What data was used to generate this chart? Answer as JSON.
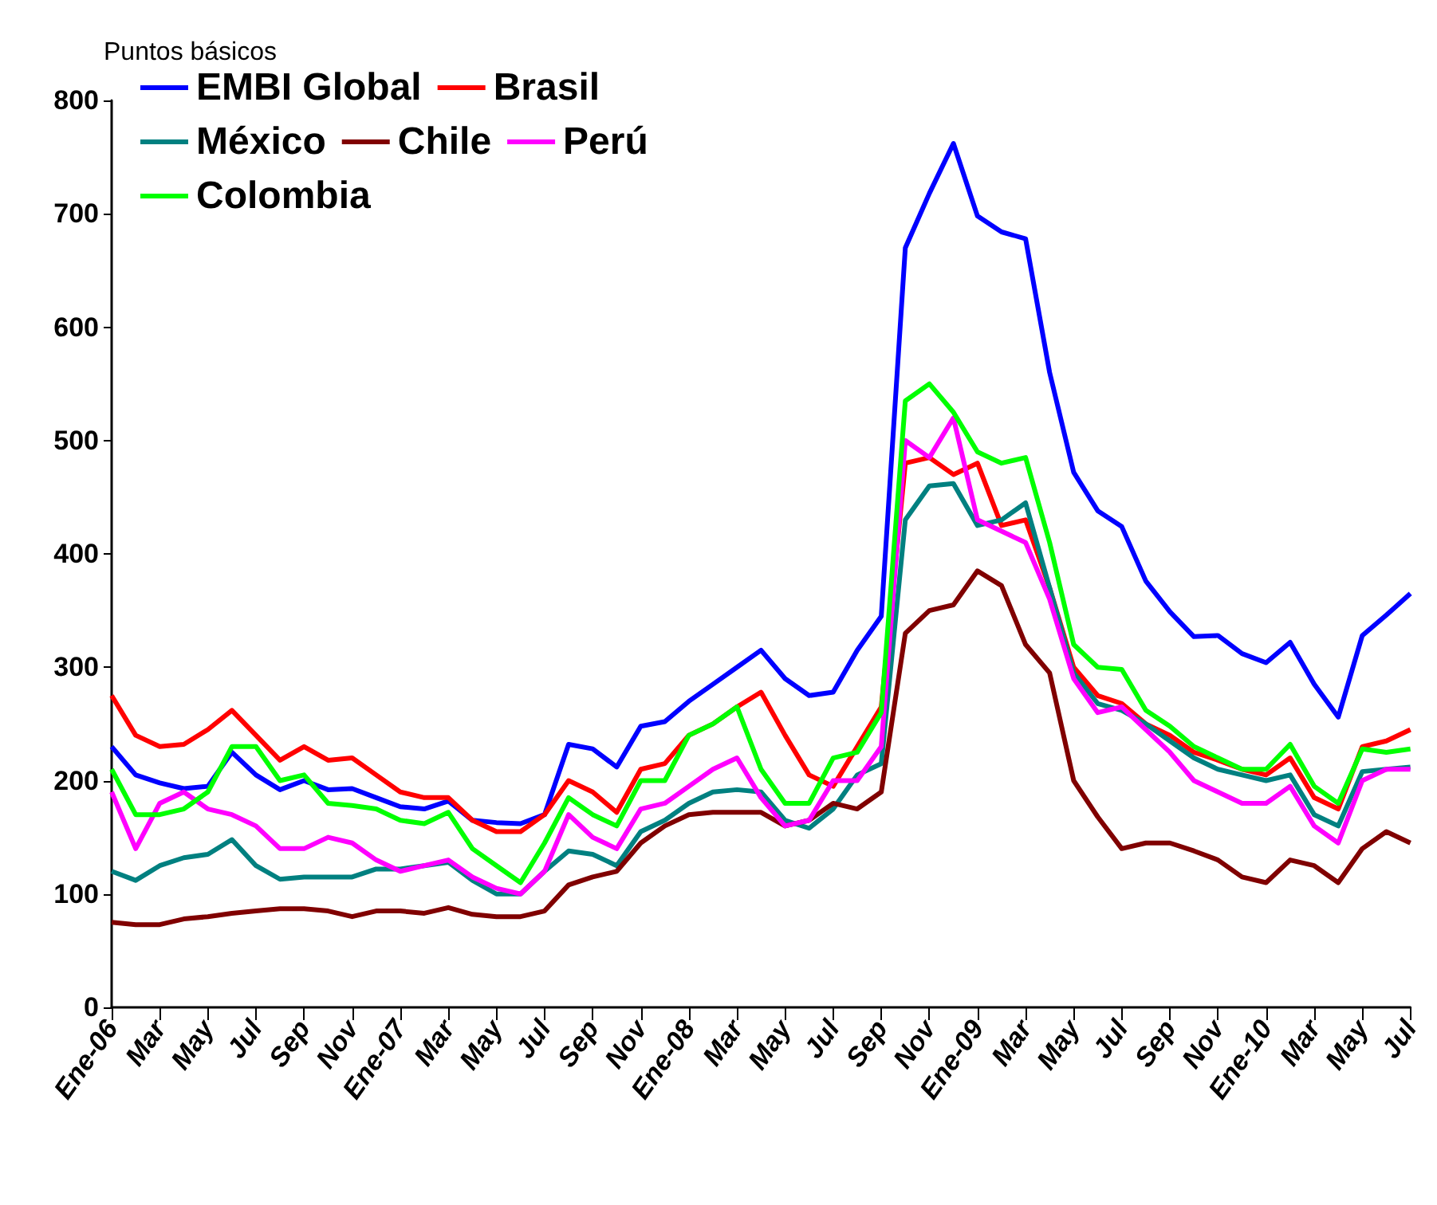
{
  "chart_data": {
    "type": "line",
    "ylabel": "Puntos básicos",
    "categories": [
      "Ene-06",
      null,
      "Mar",
      null,
      "May",
      null,
      "Jul",
      null,
      "Sep",
      null,
      "Nov",
      null,
      "Ene-07",
      null,
      "Mar",
      null,
      "May",
      null,
      "Jul",
      null,
      "Sep",
      null,
      "Nov",
      null,
      "Ene-08",
      null,
      "Mar",
      null,
      "May",
      null,
      "Jul",
      null,
      "Sep",
      null,
      "Nov",
      null,
      "Ene-09",
      null,
      "Mar",
      null,
      "May",
      null,
      "Jul",
      null,
      "Sep",
      null,
      "Nov",
      null,
      "Ene-10",
      null,
      "Mar",
      null,
      "May",
      null,
      "Jul"
    ],
    "series": [
      {
        "name": "EMBI Global",
        "color": "#0000ff",
        "values": [
          230,
          205,
          198,
          193,
          195,
          225,
          205,
          192,
          200,
          192,
          193,
          185,
          177,
          175,
          182,
          165,
          163,
          162,
          170,
          232,
          228,
          212,
          248,
          252,
          270,
          285,
          300,
          315,
          290,
          275,
          278,
          315,
          345,
          670,
          718,
          762,
          698,
          684,
          678,
          560,
          472,
          438,
          424,
          376,
          349,
          327,
          328,
          312,
          304,
          322,
          285,
          256,
          328,
          346,
          365
        ]
      },
      {
        "name": "Brasil",
        "color": "#ff0000",
        "values": [
          275,
          240,
          230,
          232,
          245,
          262,
          240,
          218,
          230,
          218,
          220,
          205,
          190,
          185,
          185,
          165,
          155,
          155,
          170,
          200,
          190,
          172,
          210,
          215,
          240,
          250,
          265,
          278,
          240,
          205,
          195,
          230,
          265,
          480,
          485,
          470,
          480,
          425,
          430,
          370,
          300,
          275,
          268,
          250,
          240,
          225,
          218,
          210,
          205,
          220,
          185,
          175,
          230,
          235,
          245
        ]
      },
      {
        "name": "México",
        "color": "#008080",
        "values": [
          120,
          112,
          125,
          132,
          135,
          148,
          125,
          113,
          115,
          115,
          115,
          122,
          122,
          125,
          128,
          112,
          100,
          100,
          120,
          138,
          135,
          125,
          155,
          165,
          180,
          190,
          192,
          190,
          165,
          158,
          175,
          205,
          215,
          430,
          460,
          462,
          425,
          430,
          445,
          370,
          295,
          268,
          262,
          250,
          235,
          220,
          210,
          205,
          200,
          205,
          170,
          160,
          208,
          210,
          212
        ]
      },
      {
        "name": "Chile",
        "color": "#800000",
        "values": [
          75,
          73,
          73,
          78,
          80,
          83,
          85,
          87,
          87,
          85,
          80,
          85,
          85,
          83,
          88,
          82,
          80,
          80,
          85,
          108,
          115,
          120,
          145,
          160,
          170,
          172,
          172,
          172,
          160,
          165,
          180,
          175,
          190,
          330,
          350,
          355,
          385,
          372,
          320,
          295,
          200,
          168,
          140,
          145,
          145,
          138,
          130,
          115,
          110,
          130,
          125,
          110,
          140,
          155,
          145
        ]
      },
      {
        "name": "Perú",
        "color": "#ff00ff",
        "values": [
          190,
          140,
          180,
          190,
          175,
          170,
          160,
          140,
          140,
          150,
          145,
          130,
          120,
          125,
          130,
          115,
          105,
          100,
          120,
          170,
          150,
          140,
          175,
          180,
          195,
          210,
          220,
          185,
          160,
          165,
          200,
          200,
          230,
          500,
          485,
          520,
          430,
          420,
          410,
          360,
          290,
          260,
          265,
          245,
          225,
          200,
          190,
          180,
          180,
          195,
          160,
          145,
          200,
          210,
          210
        ]
      },
      {
        "name": "Colombia",
        "color": "#00ff00",
        "values": [
          210,
          170,
          170,
          175,
          190,
          230,
          230,
          200,
          205,
          180,
          178,
          175,
          165,
          162,
          172,
          140,
          125,
          110,
          145,
          185,
          170,
          160,
          200,
          200,
          240,
          250,
          265,
          210,
          180,
          180,
          220,
          225,
          260,
          535,
          550,
          525,
          490,
          480,
          485,
          410,
          320,
          300,
          298,
          262,
          248,
          230,
          220,
          210,
          210,
          232,
          195,
          180,
          228,
          225,
          228
        ]
      }
    ],
    "ylim": [
      0,
      800
    ],
    "yticks": [
      0,
      100,
      200,
      300,
      400,
      500,
      600,
      700,
      800
    ],
    "grid": false,
    "legend": "top left",
    "marker": "none",
    "line_style": "solid"
  }
}
